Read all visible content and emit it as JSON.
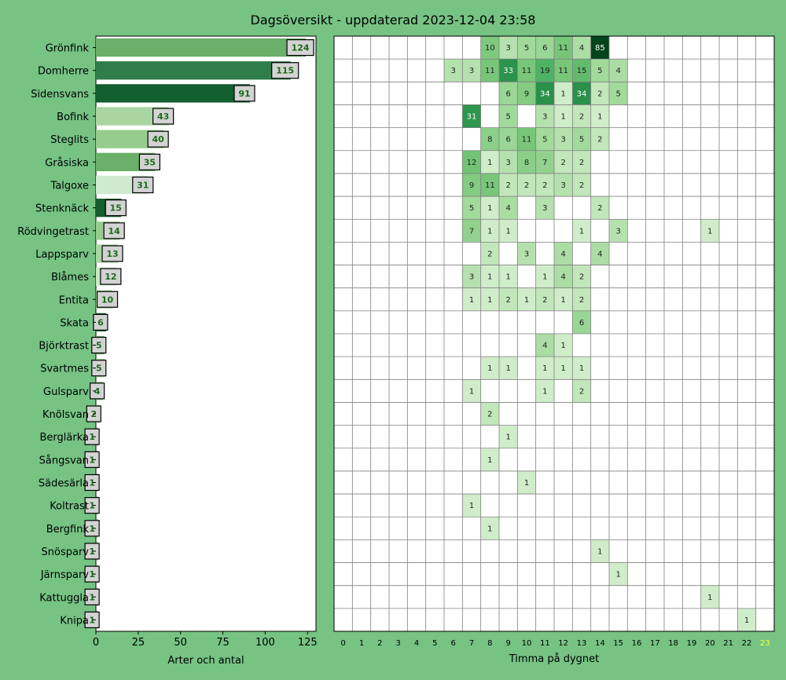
{
  "title": "Dagsöversikt - uppdaterad 2023-12-04 23:58",
  "chart_data": [
    {
      "type": "bar",
      "orientation": "horizontal",
      "xlabel": "Arter och antal",
      "xlim": [
        0,
        130
      ],
      "xticks": [
        0,
        25,
        50,
        75,
        100,
        125
      ],
      "categories": [
        "Grönfink",
        "Domherre",
        "Sidensvans",
        "Bofink",
        "Steglits",
        "Gråsiska",
        "Talgoxe",
        "Stenknäck",
        "Rödvingetrast",
        "Lappsparv",
        "Blåmes",
        "Entita",
        "Skata",
        "Björktrast",
        "Svartmes",
        "Gulsparv",
        "Knölsvan",
        "Berglärka",
        "Sångsvan",
        "Sädesärla",
        "Koltrast",
        "Bergfink",
        "Snösparv",
        "Järnsparv",
        "Kattuggla",
        "Knipa"
      ],
      "values": [
        124,
        115,
        91,
        43,
        40,
        35,
        31,
        15,
        14,
        13,
        12,
        10,
        6,
        5,
        5,
        4,
        2,
        1,
        1,
        1,
        1,
        1,
        1,
        1,
        1,
        1
      ],
      "bar_colors": [
        "#6aaf6a",
        "#2f7d4a",
        "#115e2e",
        "#a9d5a1",
        "#97cd8c",
        "#6aaf6a",
        "#d0ead0",
        "#145e2e",
        "#97cd8c",
        "#a9d5a1",
        "#c9e8c2",
        "#a9d5a1",
        "#145e2e",
        "#6aaf6a",
        "#a9d5a1",
        "#97cd8c",
        "#a9d5a1",
        "#6aaf6a",
        "#6aaf6a",
        "#6aaf6a",
        "#6aaf6a",
        "#6aaf6a",
        "#6aaf6a",
        "#6aaf6a",
        "#6aaf6a",
        "#6aaf6a"
      ],
      "label_box_color": "#d3d3d3",
      "label_text_color": "#1a6b1a"
    },
    {
      "type": "heatmap",
      "xlabel": "Timma på dygnet",
      "hours": [
        "0",
        "1",
        "2",
        "3",
        "4",
        "5",
        "6",
        "7",
        "8",
        "9",
        "10",
        "11",
        "12",
        "13",
        "14",
        "15",
        "16",
        "17",
        "18",
        "19",
        "20",
        "21",
        "22",
        "23"
      ],
      "highlight_hour": "23",
      "highlight_color": "#ffff33",
      "cells": [
        [
          [
            8,
            10
          ],
          [
            9,
            3
          ],
          [
            10,
            5
          ],
          [
            11,
            6
          ],
          [
            12,
            11
          ],
          [
            13,
            4
          ],
          [
            14,
            85
          ]
        ],
        [
          [
            6,
            3
          ],
          [
            7,
            3
          ],
          [
            8,
            11
          ],
          [
            9,
            33
          ],
          [
            10,
            11
          ],
          [
            11,
            19
          ],
          [
            12,
            11
          ],
          [
            13,
            15
          ],
          [
            14,
            5
          ],
          [
            15,
            4
          ]
        ],
        [
          [
            9,
            6
          ],
          [
            10,
            9
          ],
          [
            11,
            34
          ],
          [
            12,
            1
          ],
          [
            13,
            34
          ],
          [
            14,
            2
          ],
          [
            15,
            5
          ]
        ],
        [
          [
            7,
            31
          ],
          [
            9,
            5
          ],
          [
            11,
            3
          ],
          [
            12,
            1
          ],
          [
            13,
            2
          ],
          [
            14,
            1
          ]
        ],
        [
          [
            8,
            8
          ],
          [
            9,
            6
          ],
          [
            10,
            11
          ],
          [
            11,
            5
          ],
          [
            12,
            3
          ],
          [
            13,
            5
          ],
          [
            14,
            2
          ]
        ],
        [
          [
            7,
            12
          ],
          [
            8,
            1
          ],
          [
            9,
            3
          ],
          [
            10,
            8
          ],
          [
            11,
            7
          ],
          [
            12,
            2
          ],
          [
            13,
            2
          ]
        ],
        [
          [
            7,
            9
          ],
          [
            8,
            11
          ],
          [
            9,
            2
          ],
          [
            10,
            2
          ],
          [
            11,
            2
          ],
          [
            12,
            3
          ],
          [
            13,
            2
          ]
        ],
        [
          [
            7,
            5
          ],
          [
            8,
            1
          ],
          [
            9,
            4
          ],
          [
            11,
            3
          ],
          [
            14,
            2
          ]
        ],
        [
          [
            7,
            7
          ],
          [
            8,
            1
          ],
          [
            9,
            1
          ],
          [
            13,
            1
          ],
          [
            15,
            3
          ],
          [
            20,
            1
          ]
        ],
        [
          [
            8,
            2
          ],
          [
            10,
            3
          ],
          [
            12,
            4
          ],
          [
            14,
            4
          ]
        ],
        [
          [
            7,
            3
          ],
          [
            8,
            1
          ],
          [
            9,
            1
          ],
          [
            11,
            1
          ],
          [
            12,
            4
          ],
          [
            13,
            2
          ]
        ],
        [
          [
            7,
            1
          ],
          [
            8,
            1
          ],
          [
            9,
            2
          ],
          [
            10,
            1
          ],
          [
            11,
            2
          ],
          [
            12,
            1
          ],
          [
            13,
            2
          ]
        ],
        [
          [
            13,
            6
          ]
        ],
        [
          [
            11,
            4
          ],
          [
            12,
            1
          ]
        ],
        [
          [
            8,
            1
          ],
          [
            9,
            1
          ],
          [
            11,
            1
          ],
          [
            12,
            1
          ],
          [
            13,
            1
          ]
        ],
        [
          [
            7,
            1
          ],
          [
            11,
            1
          ],
          [
            13,
            2
          ]
        ],
        [
          [
            8,
            2
          ]
        ],
        [
          [
            9,
            1
          ]
        ],
        [
          [
            8,
            1
          ]
        ],
        [
          [
            10,
            1
          ]
        ],
        [
          [
            7,
            1
          ]
        ],
        [
          [
            8,
            1
          ]
        ],
        [
          [
            14,
            1
          ]
        ],
        [
          [
            15,
            1
          ]
        ],
        [
          [
            20,
            1
          ]
        ],
        [
          [
            22,
            1
          ]
        ]
      ]
    }
  ]
}
